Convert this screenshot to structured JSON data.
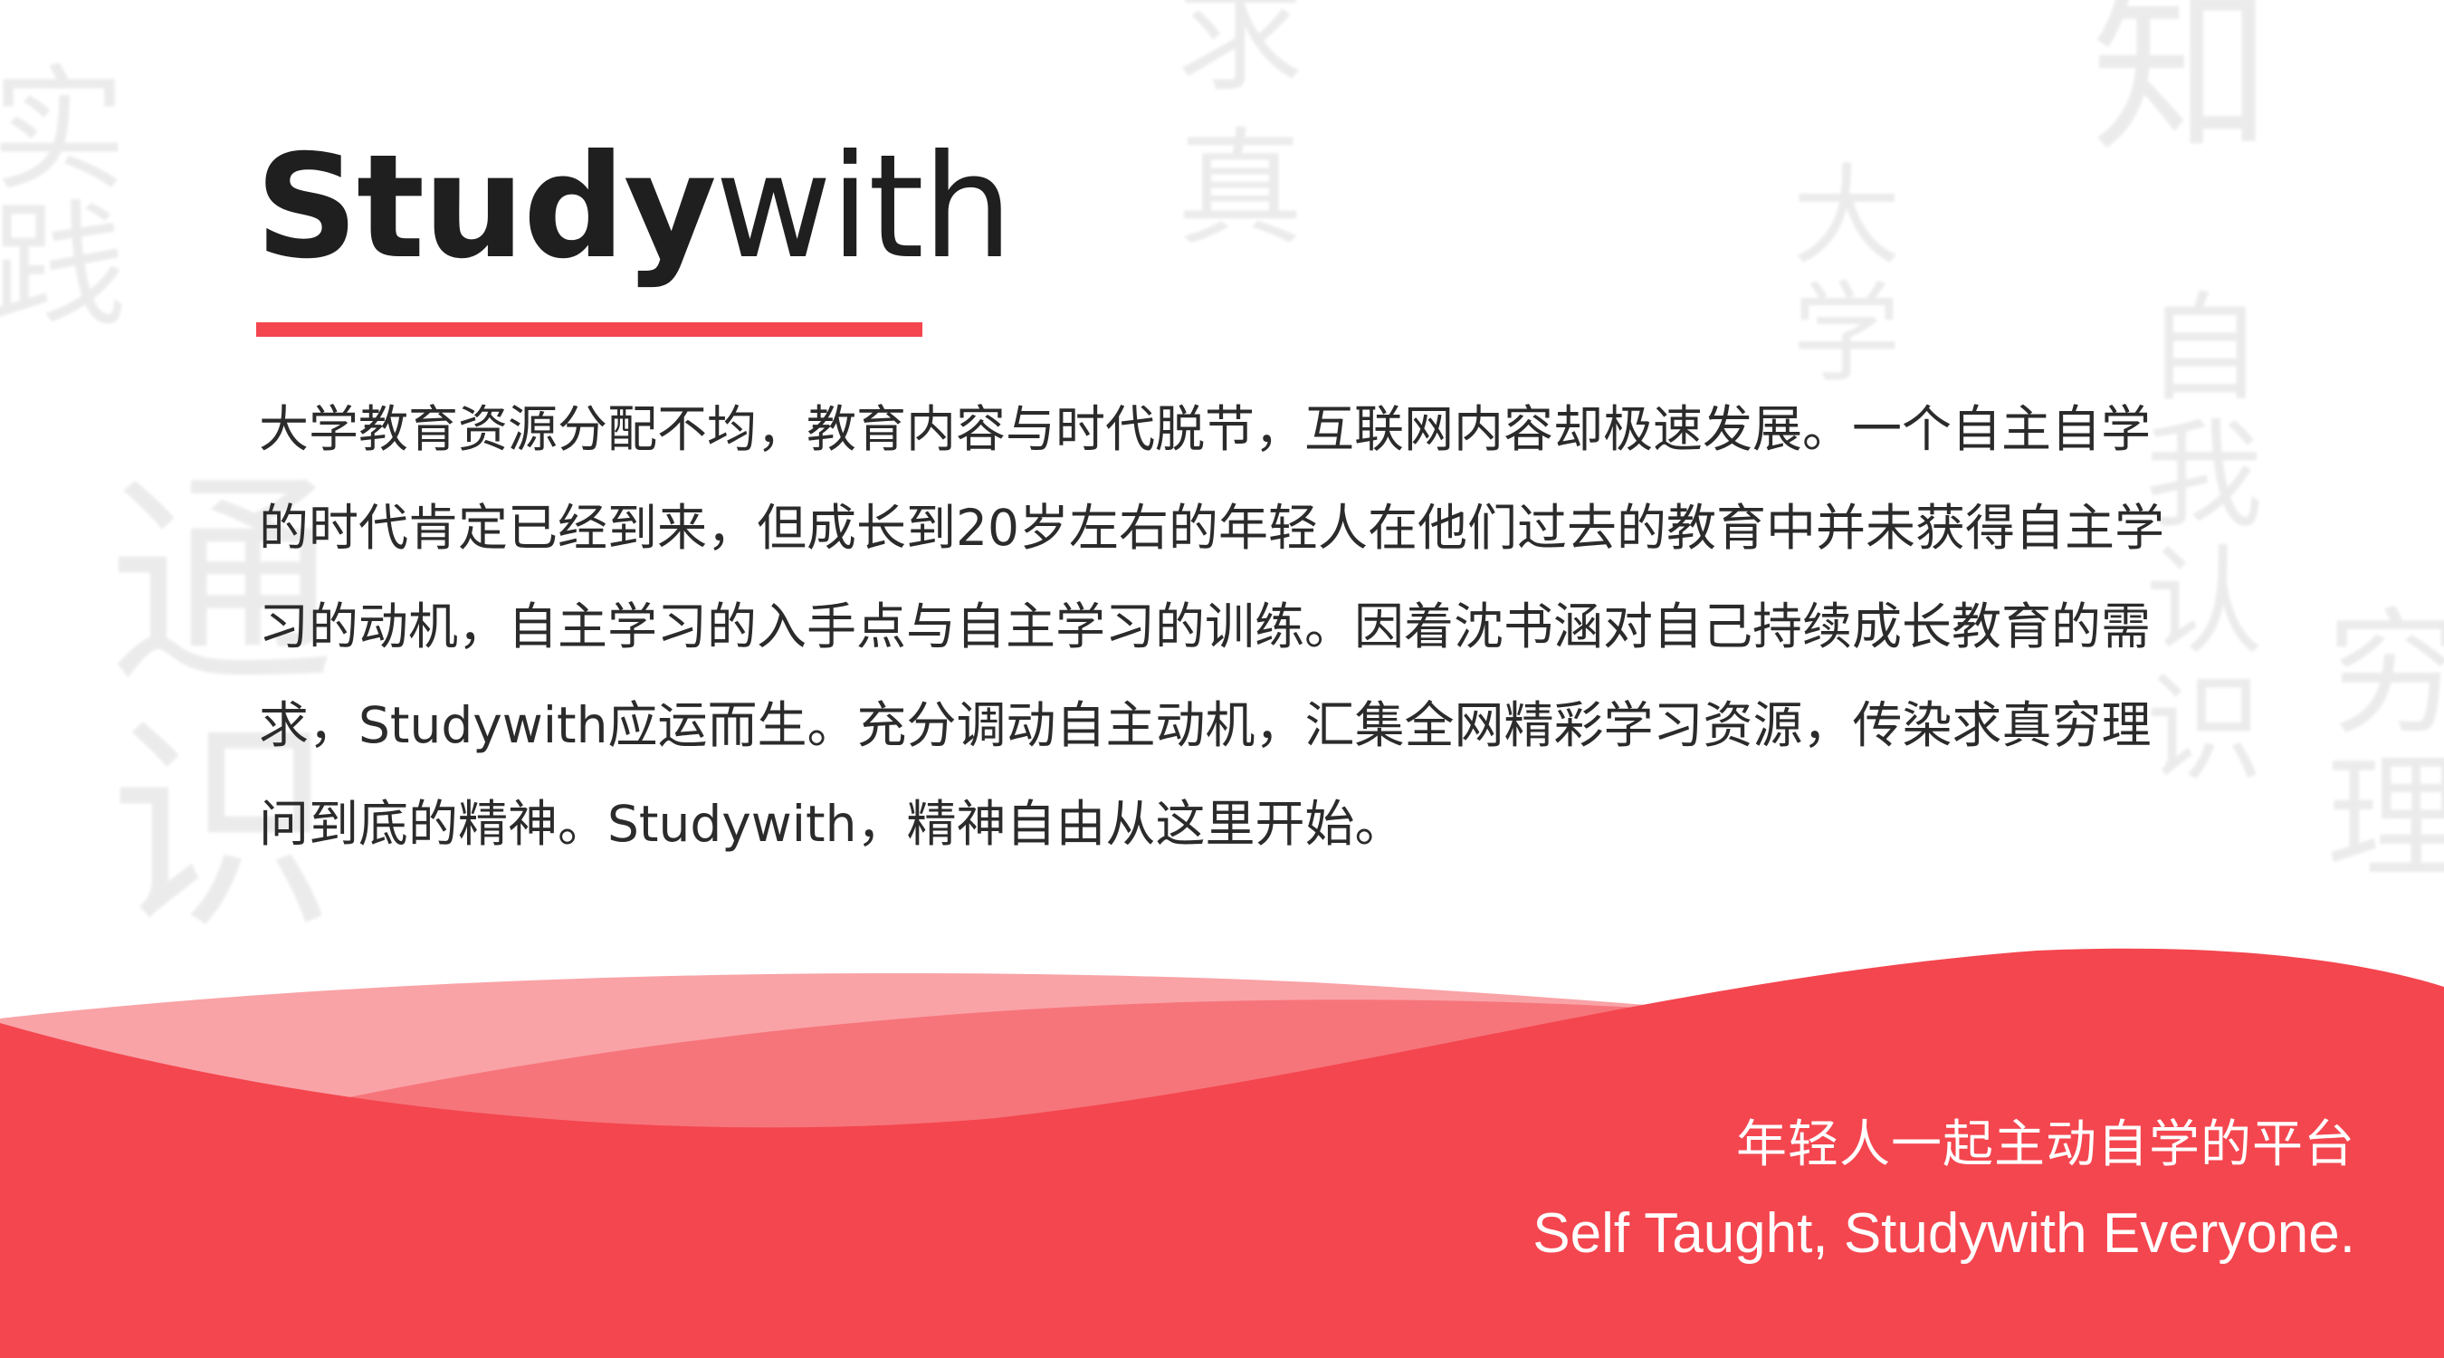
{
  "background_characters": [
    "实",
    "践",
    "求",
    "真",
    "知",
    "大",
    "学",
    "通",
    "识",
    "自",
    "我",
    "认",
    "识",
    "穷",
    "理"
  ],
  "logo": {
    "bold": "Study",
    "light": "with"
  },
  "description": "大学教育资源分配不均，教育内容与时代脱节，互联网内容却极速发展。一个自主自学的时代肯定已经到来，但成长到20岁左右的年轻人在他们过去的教育中并未获得自主学习的动机，自主学习的入手点与自主学习的训练。因着沈书涵对自己持续成长教育的需求，Studywith应运而生。充分调动自主动机，汇集全网精彩学习资源，传染求真穷理问到底的精神。Studywith，精神自由从这里开始。",
  "tagline": {
    "chinese": "年轻人一起主动自学的平台",
    "english": "Self Taught, Studywith Everyone."
  },
  "colors": {
    "accent": "#f4464f",
    "wave_light": "#f9a3a7",
    "wave_mid": "#f6757b",
    "text_dark": "#2b2b2b",
    "logo": "#1f1f1f"
  }
}
